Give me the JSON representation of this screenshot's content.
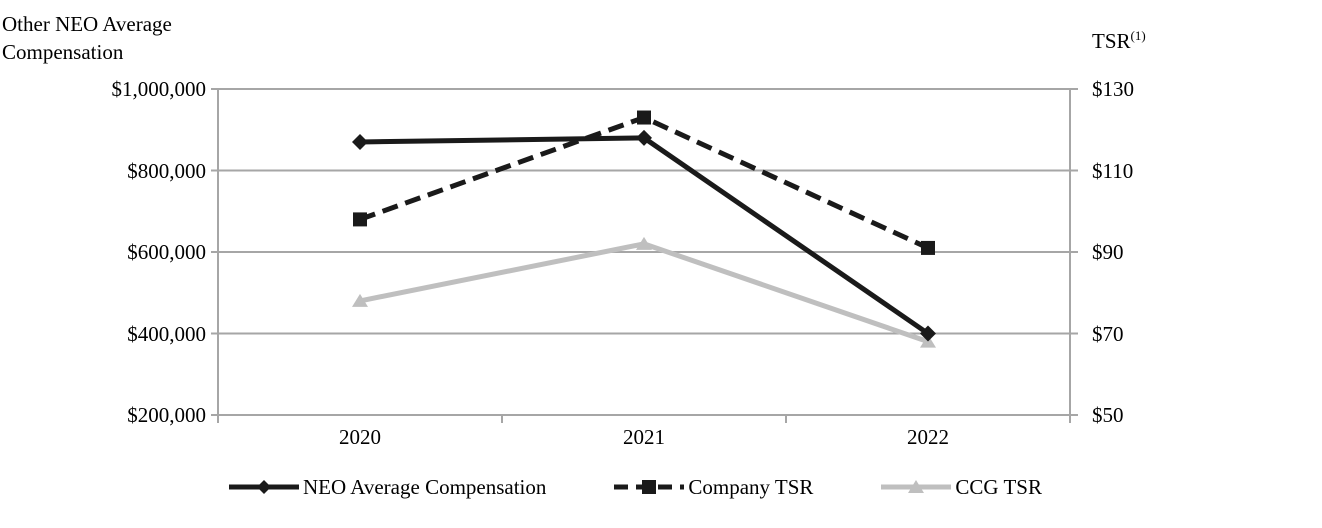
{
  "chart_data": {
    "type": "line",
    "title_left": [
      "Other NEO Average",
      "Compensation"
    ],
    "title_right": "TSR",
    "title_right_sup": "(1)",
    "x_categories": [
      "2020",
      "2021",
      "2022"
    ],
    "left_axis": {
      "label": "Other NEO Average Compensation",
      "ticks": [
        "$1,000,000",
        "$800,000",
        "$600,000",
        "$400,000",
        "$200,000"
      ],
      "min": 200000,
      "max": 1000000
    },
    "right_axis": {
      "label": "TSR(1)",
      "ticks": [
        "$130",
        "$110",
        "$90",
        "$70",
        "$50"
      ],
      "min": 50,
      "max": 130
    },
    "series": [
      {
        "name": "NEO Average Compensation",
        "axis": "left",
        "style": "solid",
        "marker": "diamond",
        "color": "#1a1a1a",
        "values": [
          870000,
          880000,
          400000
        ]
      },
      {
        "name": "Company TSR",
        "axis": "right",
        "style": "dashed",
        "marker": "square",
        "color": "#1a1a1a",
        "values": [
          98,
          123,
          91
        ]
      },
      {
        "name": "CCG TSR",
        "axis": "right",
        "style": "solid",
        "marker": "triangle",
        "color": "#bfbfbf",
        "values": [
          78,
          92,
          68
        ]
      }
    ],
    "colors": {
      "grid": "#a6a6a6",
      "text": "#000000"
    },
    "legend_position": "bottom",
    "grid": "horizontal"
  }
}
